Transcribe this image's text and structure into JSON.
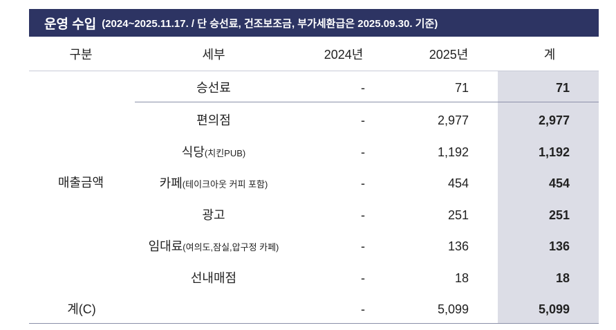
{
  "header": {
    "title": "운영 수입",
    "subtitle": "(2024~2025.11.17. / 단 승선료, 건조보조금, 부가세환급은 2025.09.30. 기준)"
  },
  "table": {
    "columns": [
      "구분",
      "세부",
      "2024년",
      "2025년",
      "계"
    ],
    "category": "매출금액",
    "rows": [
      {
        "detail": "승선료",
        "note": null,
        "y2024": "-",
        "y2025": "71",
        "total": "71"
      },
      {
        "detail": "편의점",
        "note": null,
        "y2024": "-",
        "y2025": "2,977",
        "total": "2,977"
      },
      {
        "detail": "식당",
        "note": "(치킨PUB)",
        "y2024": "-",
        "y2025": "1,192",
        "total": "1,192"
      },
      {
        "detail": "카페",
        "note": "(테이크아웃 커피 포함)",
        "y2024": "-",
        "y2025": "454",
        "total": "454"
      },
      {
        "detail": "광고",
        "note": null,
        "y2024": "-",
        "y2025": "251",
        "total": "251"
      },
      {
        "detail": "임대료",
        "note": "(여의도,잠실,압구정 카페)",
        "y2024": "-",
        "y2025": "136",
        "total": "136"
      },
      {
        "detail": "선내매점",
        "note": null,
        "y2024": "-",
        "y2025": "18",
        "total": "18"
      }
    ],
    "total_row": {
      "label": "계(C)",
      "y2024": "-",
      "y2025": "5,099",
      "total": "5,099"
    }
  }
}
